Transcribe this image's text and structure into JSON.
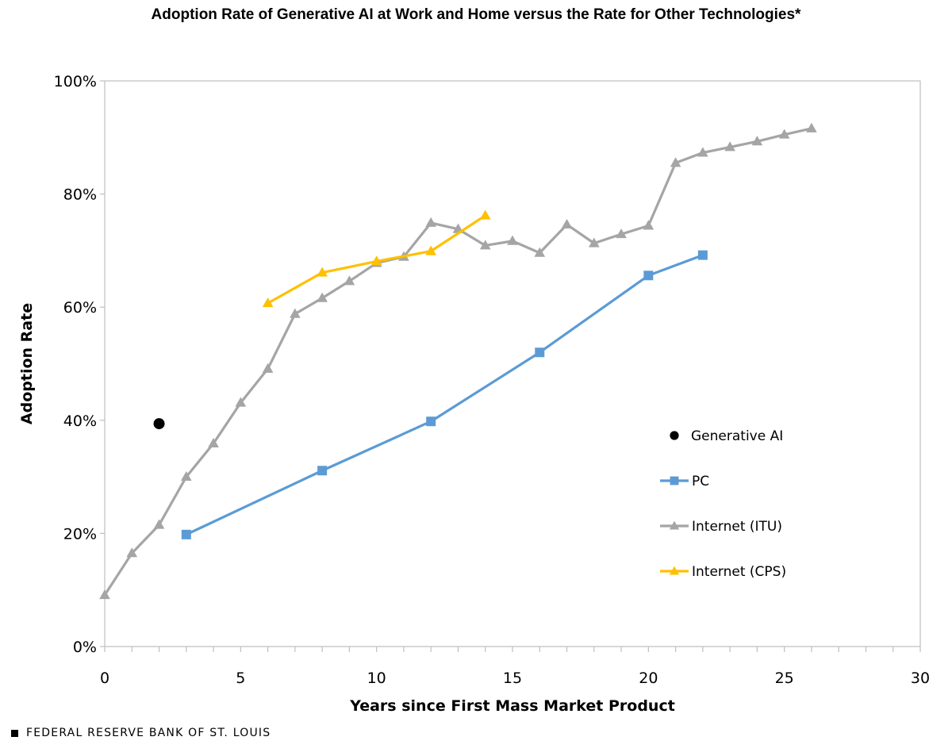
{
  "chart_data": {
    "type": "line",
    "title": "Adoption Rate of Generative AI at Work and Home versus the Rate for Other Technologies*",
    "xlabel": "Years since First Mass Market Product",
    "ylabel": "Adoption Rate",
    "xlim": [
      0,
      30
    ],
    "ylim": [
      0,
      100
    ],
    "x_ticks": [
      "0",
      "5",
      "10",
      "15",
      "20",
      "25",
      "30"
    ],
    "x_tick_values": [
      0,
      5,
      10,
      15,
      20,
      25,
      30
    ],
    "y_ticks": [
      "0%",
      "20%",
      "40%",
      "60%",
      "80%",
      "100%"
    ],
    "y_tick_values": [
      0,
      20,
      40,
      60,
      80,
      100
    ],
    "grid": false,
    "legend_position": "right",
    "series": [
      {
        "name": "Generative AI",
        "marker": "circle",
        "color": "#000000",
        "line": false,
        "points": [
          [
            2,
            39.4
          ]
        ]
      },
      {
        "name": "PC",
        "marker": "square",
        "color": "#5B9BD5",
        "line": true,
        "points": [
          [
            3,
            19.8
          ],
          [
            8,
            31.1
          ],
          [
            12,
            39.8
          ],
          [
            16,
            52.0
          ],
          [
            20,
            65.6
          ],
          [
            22,
            69.2
          ]
        ]
      },
      {
        "name": "Internet (ITU)",
        "marker": "triangle",
        "color": "#A5A5A5",
        "line": true,
        "points": [
          [
            0,
            9.1
          ],
          [
            1,
            16.5
          ],
          [
            2,
            21.5
          ],
          [
            3,
            30.0
          ],
          [
            4,
            35.9
          ],
          [
            5,
            43.1
          ],
          [
            6,
            49.1
          ],
          [
            7,
            58.8
          ],
          [
            8,
            61.6
          ],
          [
            9,
            64.6
          ],
          [
            10,
            67.8
          ],
          [
            11,
            68.9
          ],
          [
            12,
            74.9
          ],
          [
            13,
            73.8
          ],
          [
            14,
            70.9
          ],
          [
            15,
            71.7
          ],
          [
            16,
            69.6
          ],
          [
            17,
            74.6
          ],
          [
            18,
            71.3
          ],
          [
            19,
            72.9
          ],
          [
            20,
            74.4
          ],
          [
            21,
            85.5
          ],
          [
            22,
            87.3
          ],
          [
            23,
            88.3
          ],
          [
            24,
            89.3
          ],
          [
            25,
            90.5
          ],
          [
            26,
            91.6
          ]
        ]
      },
      {
        "name": "Internet (CPS)",
        "marker": "triangle",
        "color": "#FFC000",
        "line": true,
        "points": [
          [
            6,
            60.7
          ],
          [
            8,
            66.1
          ],
          [
            10,
            68.1
          ],
          [
            12,
            69.9
          ],
          [
            14,
            76.2
          ]
        ]
      }
    ]
  },
  "footer": {
    "source": "FEDERAL RESERVE BANK OF ST. LOUIS"
  }
}
